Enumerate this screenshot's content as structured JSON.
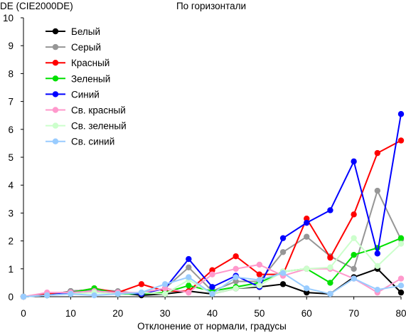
{
  "chart_data": {
    "type": "line",
    "title": "По горизонтали",
    "ylabel": "DE (CIE2000DE)",
    "xlabel": "Отклонение от нормали, градусы",
    "x": [
      0,
      5,
      10,
      15,
      20,
      25,
      30,
      35,
      40,
      45,
      50,
      55,
      60,
      65,
      70,
      75,
      80
    ],
    "xlim": [
      0,
      80
    ],
    "ylim": [
      0,
      10
    ],
    "xticks": [
      "0",
      "10",
      "20",
      "30",
      "40",
      "50",
      "60",
      "70",
      "80"
    ],
    "yticks": [
      "0",
      "1",
      "2",
      "3",
      "4",
      "5",
      "6",
      "7",
      "8",
      "9",
      "10"
    ],
    "grid": false,
    "legend_position": "top-left",
    "series": [
      {
        "name": "Белый",
        "color": "#000000",
        "values": [
          0.0,
          0.05,
          0.2,
          0.25,
          0.15,
          0.05,
          0.1,
          0.2,
          0.1,
          0.3,
          0.35,
          0.45,
          0.15,
          0.1,
          0.7,
          1.0,
          0.15
        ]
      },
      {
        "name": "Серый",
        "color": "#969696",
        "values": [
          0.0,
          0.05,
          0.2,
          0.25,
          0.2,
          0.1,
          0.3,
          1.05,
          0.2,
          0.55,
          0.55,
          1.6,
          2.15,
          1.45,
          1.0,
          3.8,
          2.05
        ]
      },
      {
        "name": "Красный",
        "color": "#ff0000",
        "values": [
          0.0,
          0.1,
          0.15,
          0.3,
          0.15,
          0.45,
          0.2,
          0.2,
          0.95,
          1.45,
          0.8,
          0.8,
          2.8,
          1.4,
          2.95,
          5.15,
          5.6
        ]
      },
      {
        "name": "Зеленый",
        "color": "#00e000",
        "values": [
          0.0,
          0.05,
          0.15,
          0.3,
          0.1,
          0.1,
          0.15,
          0.4,
          0.2,
          0.35,
          0.5,
          0.9,
          1.0,
          0.5,
          1.5,
          1.75,
          2.1
        ]
      },
      {
        "name": "Синий",
        "color": "#0000ff",
        "values": [
          0.0,
          0.05,
          0.15,
          0.2,
          0.15,
          0.1,
          0.3,
          1.35,
          0.35,
          0.75,
          0.35,
          2.1,
          2.65,
          3.1,
          4.85,
          1.55,
          6.55
        ]
      },
      {
        "name": "Св. красный",
        "color": "#ff99cc",
        "values": [
          0.0,
          0.15,
          0.15,
          0.2,
          0.15,
          0.15,
          0.3,
          0.15,
          0.8,
          1.0,
          1.15,
          0.75,
          1.0,
          1.0,
          0.65,
          0.15,
          0.65
        ]
      },
      {
        "name": "Св. зеленый",
        "color": "#ccffcc",
        "values": [
          0.0,
          0.05,
          0.1,
          0.15,
          0.1,
          0.15,
          0.1,
          0.6,
          0.1,
          0.3,
          0.4,
          0.9,
          1.0,
          1.05,
          2.1,
          1.1,
          1.9
        ]
      },
      {
        "name": "Св. синий",
        "color": "#99ccff",
        "values": [
          0.0,
          0.05,
          0.1,
          0.05,
          0.1,
          0.15,
          0.45,
          0.7,
          0.1,
          0.7,
          0.6,
          0.85,
          0.3,
          0.1,
          0.65,
          0.25,
          0.4
        ]
      }
    ]
  }
}
